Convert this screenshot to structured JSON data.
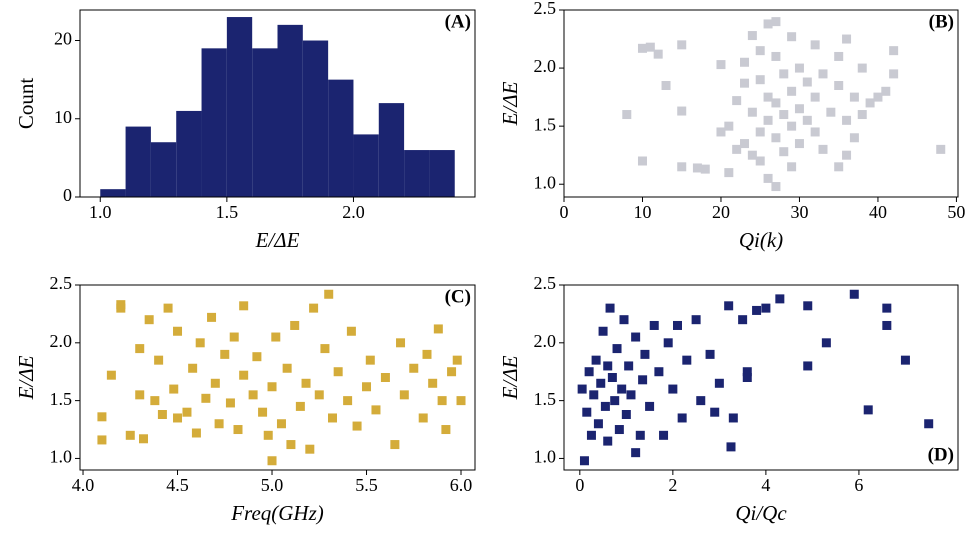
{
  "chart_data": [
    {
      "type": "histogram",
      "annotation": "(A)",
      "label_corner": "top-right",
      "xlabel": "E/ΔE",
      "ylabel": "Count",
      "color": "#1b2470",
      "bins": [
        1.0,
        1.1,
        1.2,
        1.3,
        1.4,
        1.5,
        1.6,
        1.7,
        1.8,
        1.9,
        2.0,
        2.1,
        2.2,
        2.3,
        2.4
      ],
      "values": [
        1,
        9,
        7,
        11,
        19,
        23,
        19,
        22,
        20,
        15,
        8,
        12,
        6,
        6
      ],
      "xlim": [
        0.92,
        2.48
      ],
      "xticks": [
        {
          "value": 1.0,
          "label": "1.0"
        },
        1.5,
        {
          "value": 2.0,
          "label": "2.0"
        }
      ],
      "ylim": [
        0,
        23.9
      ],
      "yticks": [
        0,
        10,
        20
      ]
    },
    {
      "type": "scatter",
      "annotation": "(B)",
      "label_corner": "top-right",
      "xlabel": "Qi(k)",
      "ylabel": "E/ΔE",
      "color": "#c9cad2",
      "x": [
        8,
        10,
        10,
        11,
        12,
        13,
        15,
        15,
        15,
        17,
        18,
        20,
        20,
        21,
        21,
        22,
        22,
        23,
        23,
        23,
        24,
        24,
        24,
        25,
        25,
        25,
        25,
        26,
        26,
        26,
        26,
        27,
        27,
        27,
        27,
        27,
        28,
        28,
        28,
        29,
        29,
        29,
        30,
        30,
        30,
        31,
        31,
        32,
        32,
        32,
        33,
        33,
        34,
        35,
        35,
        35,
        36,
        36,
        37,
        37,
        38,
        38,
        39,
        40,
        41,
        42,
        42,
        48,
        36,
        29
      ],
      "values": [
        1.6,
        2.17,
        1.2,
        2.18,
        2.12,
        1.85,
        2.2,
        1.63,
        1.15,
        1.14,
        1.13,
        2.03,
        1.45,
        1.5,
        1.1,
        1.72,
        1.3,
        2.05,
        1.87,
        1.35,
        2.28,
        1.62,
        1.25,
        2.15,
        1.9,
        1.45,
        1.2,
        2.38,
        1.75,
        1.55,
        1.05,
        0.98,
        2.4,
        2.1,
        1.7,
        1.4,
        1.95,
        1.6,
        1.28,
        2.27,
        1.8,
        1.5,
        2.0,
        1.65,
        1.35,
        1.88,
        1.55,
        2.2,
        1.75,
        1.45,
        1.95,
        1.3,
        1.62,
        2.1,
        1.85,
        1.15,
        2.25,
        1.55,
        1.75,
        1.4,
        2.0,
        1.6,
        1.7,
        1.75,
        1.8,
        2.15,
        1.95,
        1.3,
        1.25,
        1.15
      ],
      "xlim": [
        0,
        50.2
      ],
      "xticks": [
        0,
        10,
        20,
        30,
        40,
        50
      ],
      "ylim": [
        0.89,
        2.5
      ],
      "yticks": [
        {
          "value": 1.0,
          "label": "1.0"
        },
        1.5,
        {
          "value": 2.0,
          "label": "2.0"
        },
        2.5
      ]
    },
    {
      "type": "scatter",
      "annotation": "(C)",
      "label_corner": "top-right",
      "xlabel": "Freq(GHz)",
      "ylabel": "E/ΔE",
      "color": "#d4ac3a",
      "x": [
        4.1,
        4.1,
        4.15,
        4.2,
        4.2,
        4.25,
        4.3,
        4.3,
        4.32,
        4.35,
        4.38,
        4.4,
        4.42,
        4.45,
        4.48,
        4.5,
        4.5,
        4.55,
        4.58,
        4.6,
        4.62,
        4.65,
        4.68,
        4.7,
        4.72,
        4.75,
        4.78,
        4.8,
        4.82,
        4.85,
        4.85,
        4.9,
        4.92,
        4.95,
        4.98,
        5.0,
        5.0,
        5.02,
        5.05,
        5.08,
        5.1,
        5.12,
        5.15,
        5.18,
        5.2,
        5.22,
        5.25,
        5.28,
        5.3,
        5.32,
        5.35,
        5.4,
        5.42,
        5.45,
        5.5,
        5.52,
        5.55,
        5.6,
        5.65,
        5.68,
        5.7,
        5.75,
        5.8,
        5.82,
        5.85,
        5.88,
        5.9,
        5.92,
        5.95,
        5.98,
        6.0
      ],
      "values": [
        1.36,
        1.16,
        1.72,
        2.33,
        2.3,
        1.2,
        1.55,
        1.95,
        1.17,
        2.2,
        1.5,
        1.85,
        1.38,
        2.3,
        1.6,
        1.35,
        2.1,
        1.4,
        1.78,
        1.22,
        2.0,
        1.52,
        2.22,
        1.65,
        1.3,
        1.9,
        1.48,
        2.05,
        1.25,
        2.32,
        1.72,
        1.55,
        1.88,
        1.4,
        1.2,
        0.98,
        1.62,
        2.05,
        1.3,
        1.78,
        1.12,
        2.15,
        1.45,
        1.65,
        1.08,
        2.3,
        1.55,
        1.95,
        2.42,
        1.35,
        1.75,
        1.5,
        2.1,
        1.28,
        1.62,
        1.85,
        1.42,
        1.7,
        1.12,
        2.0,
        1.55,
        1.78,
        1.35,
        1.9,
        1.65,
        2.12,
        1.5,
        1.25,
        1.75,
        1.85,
        1.5
      ],
      "xlim": [
        3.984,
        6.074
      ],
      "xticks": [
        {
          "value": 4.0,
          "label": "4.0"
        },
        4.5,
        {
          "value": 5.0,
          "label": "5.0"
        },
        5.5,
        {
          "value": 6.0,
          "label": "6.0"
        }
      ],
      "ylim": [
        0.9,
        2.5
      ],
      "yticks": [
        {
          "value": 1.0,
          "label": "1.0"
        },
        1.5,
        {
          "value": 2.0,
          "label": "2.0"
        },
        2.5
      ]
    },
    {
      "type": "scatter",
      "annotation": "(D)",
      "label_corner": "bottom-right",
      "xlabel": "Qi/Qc",
      "ylabel": "E/ΔE",
      "color": "#1b2470",
      "x": [
        0.05,
        0.1,
        0.15,
        0.2,
        0.25,
        0.3,
        0.35,
        0.4,
        0.45,
        0.5,
        0.55,
        0.6,
        0.65,
        0.7,
        0.75,
        0.8,
        0.85,
        0.9,
        0.95,
        1.0,
        1.05,
        1.1,
        1.2,
        1.3,
        1.35,
        1.4,
        1.5,
        1.6,
        1.7,
        1.8,
        1.9,
        2.0,
        2.1,
        2.2,
        2.3,
        2.5,
        2.6,
        2.8,
        3.0,
        3.2,
        3.25,
        3.3,
        3.5,
        3.6,
        3.8,
        4.0,
        4.3,
        4.9,
        4.9,
        5.3,
        5.9,
        6.2,
        6.6,
        6.6,
        7.0,
        7.5,
        3.6,
        2.9,
        1.2,
        0.6
      ],
      "values": [
        1.6,
        0.98,
        1.4,
        1.75,
        1.2,
        1.55,
        1.85,
        1.3,
        1.65,
        2.1,
        1.45,
        1.15,
        2.3,
        1.7,
        1.5,
        1.95,
        1.25,
        1.6,
        2.2,
        1.38,
        1.8,
        1.55,
        2.05,
        1.2,
        1.68,
        1.9,
        1.45,
        2.15,
        1.75,
        1.2,
        2.0,
        1.6,
        2.15,
        1.35,
        1.85,
        2.2,
        1.5,
        1.9,
        1.65,
        2.32,
        1.1,
        1.35,
        2.2,
        1.75,
        2.28,
        2.3,
        2.38,
        2.32,
        1.8,
        2.0,
        2.42,
        1.42,
        2.3,
        2.15,
        1.85,
        1.3,
        1.7,
        1.4,
        1.05,
        1.8
      ],
      "xlim": [
        -0.34,
        8.13
      ],
      "xticks": [
        0,
        2,
        4,
        6
      ],
      "ylim": [
        0.9,
        2.5
      ],
      "yticks": [
        {
          "value": 1.0,
          "label": "1.0"
        },
        1.5,
        {
          "value": 2.0,
          "label": "2.0"
        },
        2.5
      ]
    }
  ]
}
